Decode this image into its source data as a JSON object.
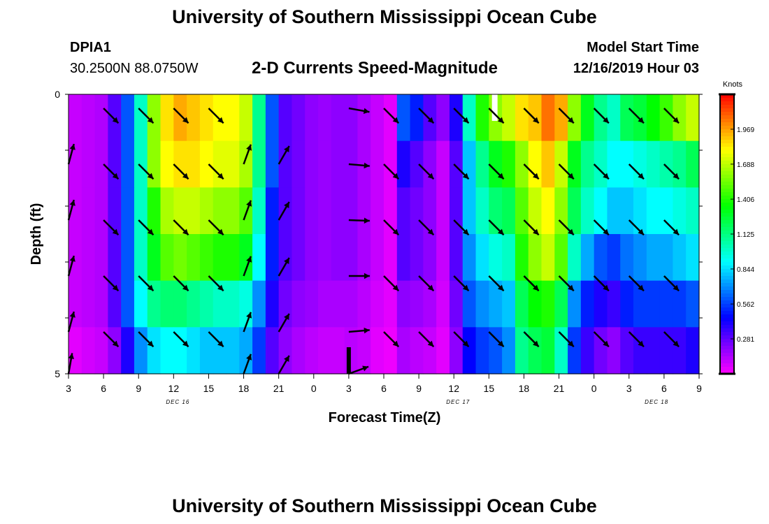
{
  "header": {
    "title": "University of Southern Mississippi Ocean Cube",
    "station_id": "DPIA1",
    "station_coords": "30.2500N 88.0750W",
    "chart_title": "2-D Currents Speed-Magnitude",
    "model_start_label": "Model Start Time",
    "model_start_value": "12/16/2019 Hour 03"
  },
  "footer": {
    "title": "University of Southern Mississippi Ocean Cube"
  },
  "colors": {
    "arrow": "#000000",
    "frame": "#000000",
    "marker_black": "#000000",
    "marker_white": "#ffffff"
  },
  "chart_data": {
    "type": "heatmap",
    "title": "2-D Currents Speed-Magnitude",
    "xlabel": "Forecast Time(Z)",
    "ylabel": "Depth (ft)",
    "x_ticks": [
      "3",
      "6",
      "9",
      "12",
      "15",
      "18",
      "21",
      "0",
      "3",
      "6",
      "9",
      "12",
      "15",
      "18",
      "21",
      "0",
      "3",
      "6",
      "9"
    ],
    "x_range_hours": [
      0,
      54
    ],
    "y_range_ft": [
      0,
      5
    ],
    "y_ticks": [
      "0",
      "5"
    ],
    "day_labels": [
      {
        "label": "DEC 16",
        "hour": 9
      },
      {
        "label": "DEC 17",
        "hour": 33
      },
      {
        "label": "DEC 18",
        "hour": 50
      }
    ],
    "colorbar": {
      "unit": "Knots",
      "ticks": [
        "1.969",
        "1.688",
        "1.406",
        "1.125",
        "0.844",
        "0.562",
        "0.281"
      ],
      "tick_values": [
        1.969,
        1.688,
        1.406,
        1.125,
        0.844,
        0.562,
        0.281
      ],
      "range": [
        0,
        2.25
      ]
    },
    "speed_knots_by_layer": [
      [
        0.1,
        0.12,
        0.14,
        0.3,
        0.6,
        1.0,
        1.6,
        1.85,
        1.95,
        1.9,
        1.85,
        1.8,
        1.8,
        1.7,
        1.1,
        0.6,
        0.3,
        0.25,
        0.2,
        0.18,
        0.2,
        0.2,
        0.15,
        0.1,
        0.05,
        0.6,
        0.5,
        0.3,
        0.2,
        0.4,
        1.0,
        1.4,
        1.6,
        1.7,
        1.85,
        1.9,
        2.05,
        1.95,
        1.6,
        1.3,
        1.1,
        1.0,
        1.2,
        1.25,
        1.35,
        1.45,
        1.6,
        1.7
      ],
      [
        0.1,
        0.12,
        0.14,
        0.3,
        0.6,
        1.0,
        1.6,
        1.8,
        1.85,
        1.85,
        1.8,
        1.75,
        1.75,
        1.65,
        1.1,
        0.6,
        0.3,
        0.25,
        0.2,
        0.18,
        0.2,
        0.2,
        0.15,
        0.1,
        0.05,
        0.4,
        0.3,
        0.2,
        0.1,
        0.3,
        0.8,
        1.1,
        1.3,
        1.4,
        1.6,
        1.8,
        1.9,
        1.7,
        1.3,
        1.1,
        1.0,
        0.9,
        0.9,
        0.95,
        1.0,
        1.05,
        1.1,
        1.2
      ],
      [
        0.1,
        0.12,
        0.14,
        0.3,
        0.6,
        1.0,
        1.4,
        1.65,
        1.7,
        1.7,
        1.65,
        1.6,
        1.6,
        1.5,
        1.0,
        0.5,
        0.3,
        0.25,
        0.2,
        0.18,
        0.2,
        0.2,
        0.15,
        0.1,
        0.05,
        0.3,
        0.25,
        0.2,
        0.1,
        0.3,
        0.8,
        1.0,
        1.15,
        1.2,
        1.5,
        1.7,
        1.8,
        1.6,
        1.2,
        1.0,
        0.9,
        0.8,
        0.8,
        0.85,
        0.9,
        0.9,
        0.95,
        1.0
      ],
      [
        0.1,
        0.12,
        0.14,
        0.3,
        0.6,
        1.0,
        1.3,
        1.5,
        1.55,
        1.5,
        1.45,
        1.4,
        1.4,
        1.3,
        0.9,
        0.5,
        0.3,
        0.25,
        0.2,
        0.18,
        0.2,
        0.2,
        0.15,
        0.1,
        0.05,
        0.3,
        0.25,
        0.2,
        0.1,
        0.3,
        0.7,
        0.85,
        0.95,
        1.0,
        1.4,
        1.6,
        1.7,
        1.5,
        1.0,
        0.75,
        0.6,
        0.55,
        0.65,
        0.7,
        0.75,
        0.75,
        0.8,
        0.85
      ],
      [
        0.1,
        0.12,
        0.14,
        0.3,
        0.6,
        0.9,
        1.1,
        1.15,
        1.15,
        1.1,
        1.05,
        1.0,
        1.0,
        0.95,
        0.7,
        0.4,
        0.25,
        0.2,
        0.18,
        0.15,
        0.15,
        0.15,
        0.12,
        0.08,
        0.05,
        0.2,
        0.18,
        0.15,
        0.08,
        0.25,
        0.6,
        0.7,
        0.75,
        0.8,
        1.2,
        1.35,
        1.4,
        1.2,
        0.7,
        0.5,
        0.4,
        0.35,
        0.5,
        0.55,
        0.55,
        0.55,
        0.55,
        0.6
      ],
      [
        0.05,
        0.08,
        0.1,
        0.2,
        0.4,
        0.7,
        0.85,
        0.9,
        0.9,
        0.85,
        0.8,
        0.8,
        0.8,
        0.75,
        0.55,
        0.3,
        0.2,
        0.15,
        0.12,
        0.1,
        0.1,
        0.12,
        0.1,
        0.05,
        0.03,
        0.15,
        0.12,
        0.1,
        0.05,
        0.2,
        0.45,
        0.55,
        0.6,
        0.7,
        1.1,
        1.2,
        1.25,
        1.0,
        0.55,
        0.35,
        0.25,
        0.2,
        0.3,
        0.35,
        0.35,
        0.35,
        0.35,
        0.4
      ]
    ],
    "arrow_hours": [
      0,
      3,
      6,
      9,
      12,
      15,
      18,
      21,
      24,
      27,
      30,
      33,
      36,
      39,
      42,
      45,
      48,
      51,
      54
    ],
    "arrow_depths_ft": [
      0.25,
      1.25,
      2.25,
      3.25,
      4.25,
      5.0
    ],
    "arrow_angle_deg_rows": [
      [
        null,
        45,
        45,
        45,
        45,
        null,
        null,
        null,
        10,
        45,
        45,
        45,
        45,
        45,
        45,
        45,
        45,
        45,
        null
      ],
      [
        -75,
        45,
        45,
        45,
        45,
        -70,
        -60,
        null,
        5,
        45,
        45,
        45,
        45,
        45,
        45,
        45,
        45,
        45,
        null
      ],
      [
        -75,
        45,
        45,
        45,
        45,
        -70,
        -60,
        null,
        2,
        45,
        45,
        45,
        45,
        45,
        45,
        45,
        45,
        45,
        null
      ],
      [
        -75,
        45,
        45,
        45,
        45,
        -70,
        -60,
        null,
        0,
        45,
        45,
        45,
        45,
        45,
        45,
        45,
        45,
        45,
        null
      ],
      [
        -75,
        45,
        45,
        45,
        45,
        -70,
        -60,
        null,
        -5,
        45,
        45,
        45,
        45,
        45,
        45,
        45,
        45,
        45,
        null
      ],
      [
        -80,
        null,
        null,
        null,
        null,
        -70,
        -60,
        null,
        -20,
        null,
        null,
        null,
        null,
        null,
        null,
        null,
        null,
        null,
        null
      ]
    ],
    "markers": [
      {
        "type": "black-bar",
        "hour": 24
      },
      {
        "type": "white-bar",
        "hour": 36.5
      }
    ]
  }
}
